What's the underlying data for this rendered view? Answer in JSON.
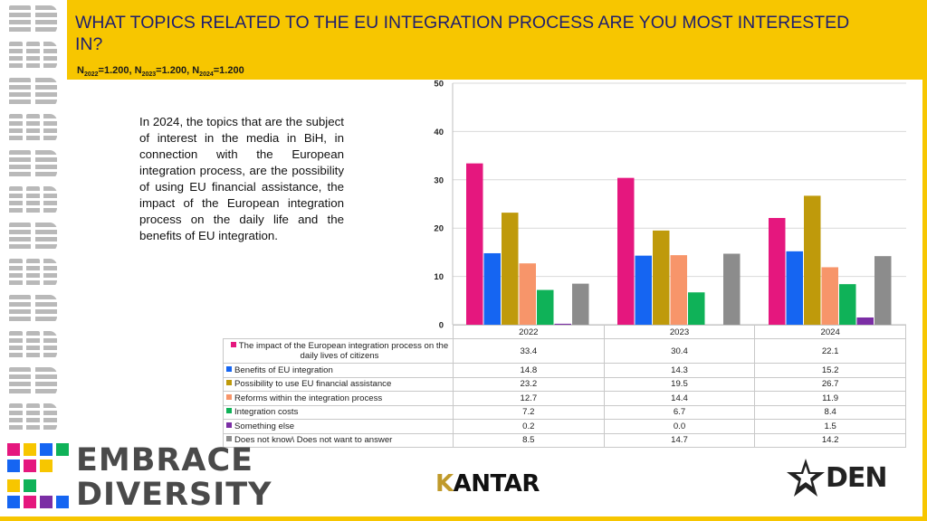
{
  "header": {
    "title": "WHAT TOPICS RELATED TO THE EU INTEGRATION PROCESS ARE YOU MOST INTERESTED IN?",
    "sample": {
      "n": "N",
      "y1": "2022",
      "v1": "=1.200, ",
      "y2": "2023",
      "v2": "=1.200, ",
      "y3": "2024",
      "v3": "=1.200"
    }
  },
  "insight_text": "In 2024, the topics that are the subject of interest in the media in BiH, in connection with the European integration process, are the possibility of using EU financial assistance, the impact of the European integration process on the daily life and the benefits of EU integration.",
  "chart_data": {
    "type": "bar",
    "title": "",
    "xlabel": "",
    "ylabel": "",
    "categories": [
      "2022",
      "2023",
      "2024"
    ],
    "ylim": [
      0,
      50
    ],
    "yticks": [
      "0",
      "10",
      "20",
      "30",
      "40",
      "50"
    ],
    "grid": true,
    "legend": "table-below",
    "series": [
      {
        "name": "The impact of the European integration process on the daily lives of citizens",
        "color": "#e5177e",
        "values": [
          33.4,
          30.4,
          22.1
        ],
        "labels": [
          "33.4",
          "30.4",
          "22.1"
        ]
      },
      {
        "name": "Benefits of EU integration",
        "color": "#1565f2",
        "values": [
          14.8,
          14.3,
          15.2
        ],
        "labels": [
          "14.8",
          "14.3",
          "15.2"
        ]
      },
      {
        "name": "Possibility to use EU financial assistance",
        "color": "#bf9a0b",
        "values": [
          23.2,
          19.5,
          26.7
        ],
        "labels": [
          "23.2",
          "19.5",
          "26.7"
        ]
      },
      {
        "name": "Reforms within the integration process",
        "color": "#f7956a",
        "values": [
          12.7,
          14.4,
          11.9
        ],
        "labels": [
          "12.7",
          "14.4",
          "11.9"
        ]
      },
      {
        "name": "Integration costs",
        "color": "#0fb258",
        "values": [
          7.2,
          6.7,
          8.4
        ],
        "labels": [
          "7.2",
          "6.7",
          "8.4"
        ]
      },
      {
        "name": "Something else",
        "color": "#7b2ea5",
        "values": [
          0.2,
          0.0,
          1.5
        ],
        "labels": [
          "0.2",
          "0.0",
          "1.5"
        ]
      },
      {
        "name": "Does not know\\ Does not want to answer",
        "color": "#8c8c8c",
        "values": [
          8.5,
          14.7,
          14.2
        ],
        "labels": [
          "8.5",
          "14.7",
          "14.2"
        ]
      }
    ]
  },
  "logos": {
    "embrace_line1": "EMBRACE",
    "embrace_line2": "DIVERSITY",
    "kantar_k": "K",
    "kantar_rest": "ANTAR",
    "den": "DEN"
  },
  "colors": {
    "accent": "#f7c600",
    "title": "#1f1f6e",
    "rail": "#b9b9b9"
  }
}
